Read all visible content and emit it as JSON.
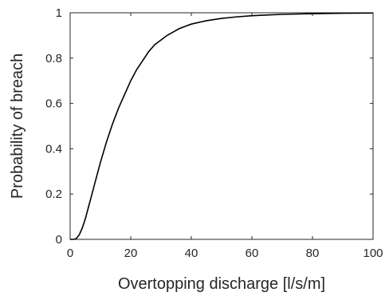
{
  "chart_data": {
    "type": "line",
    "title": "",
    "xlabel": "Overtopping discharge [l/s/m]",
    "ylabel": "Probability of breach",
    "xlim": [
      0,
      100
    ],
    "ylim": [
      0,
      1
    ],
    "x_ticks": [
      0,
      20,
      40,
      60,
      80,
      100
    ],
    "y_ticks": [
      0,
      0.2,
      0.4,
      0.6,
      0.8,
      1
    ],
    "x_tick_labels": [
      "0",
      "20",
      "40",
      "60",
      "80",
      "100"
    ],
    "y_tick_labels": [
      "0",
      "0.2",
      "0.4",
      "0.6",
      "0.8",
      "1"
    ],
    "grid": false,
    "line_color": "#000000",
    "series": [
      {
        "x": [
          0,
          1,
          2,
          3,
          4,
          5,
          6,
          7,
          8,
          9,
          10,
          12,
          14,
          16,
          18,
          20,
          22,
          24,
          26,
          28,
          30,
          32,
          34,
          36,
          38,
          40,
          45,
          50,
          55,
          60,
          65,
          70,
          80,
          90,
          100
        ],
        "y": [
          0,
          0,
          0.003,
          0.02,
          0.05,
          0.09,
          0.14,
          0.19,
          0.24,
          0.29,
          0.34,
          0.43,
          0.51,
          0.58,
          0.64,
          0.7,
          0.75,
          0.79,
          0.83,
          0.86,
          0.88,
          0.9,
          0.915,
          0.93,
          0.94,
          0.95,
          0.965,
          0.975,
          0.982,
          0.987,
          0.99,
          0.993,
          0.996,
          0.998,
          0.999
        ]
      }
    ]
  }
}
